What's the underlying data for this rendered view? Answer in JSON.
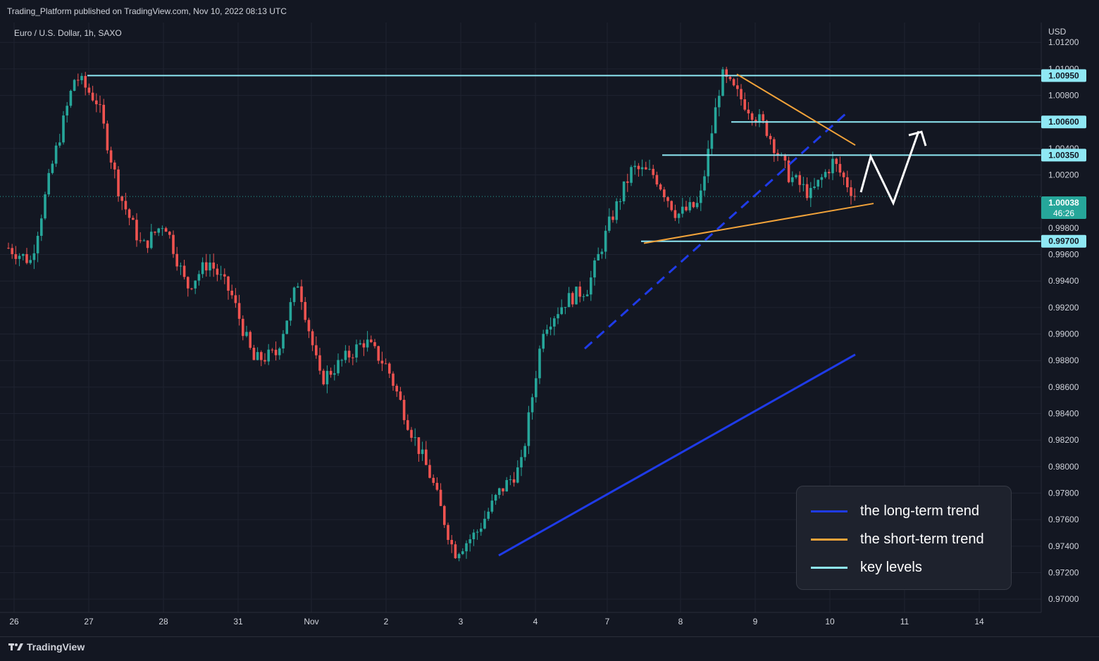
{
  "header": {
    "published": "Trading_Platform published on TradingView.com, Nov 10, 2022 08:13 UTC"
  },
  "footer": {
    "brand": "TradingView"
  },
  "legend": {
    "items": [
      {
        "label": "the long-term trend",
        "color": "#1f3be8"
      },
      {
        "label": "the short-term trend",
        "color": "#f2a33a"
      },
      {
        "label": "key levels",
        "color": "#8fe8f4"
      }
    ]
  },
  "colors": {
    "up": "#26a69a",
    "down": "#ef5350",
    "background": "#131722",
    "key_level": "#8fe8f4",
    "long_trend": "#1f3be8",
    "short_trend": "#f2a33a",
    "last_price_bg": "#26a69a"
  },
  "chart_data": {
    "type": "candlestick",
    "title": "Euro / U.S. Dollar, 1h, SAXO",
    "currency": "USD",
    "y_ticks": [
      "1.01200",
      "1.01000",
      "1.00800",
      "1.00400",
      "1.00200",
      "0.99800",
      "0.99600",
      "0.99400",
      "0.99200",
      "0.99000",
      "0.98800",
      "0.98600",
      "0.98400",
      "0.98200",
      "0.98000",
      "0.97800",
      "0.97600",
      "0.97400",
      "0.97200",
      "0.97000"
    ],
    "x_ticks": [
      "26",
      "27",
      "28",
      "31",
      "Nov",
      "2",
      "3",
      "4",
      "7",
      "8",
      "9",
      "10",
      "11",
      "14"
    ],
    "ylim": [
      0.969,
      1.0135
    ],
    "grid": true,
    "last_price": {
      "value": "1.00038",
      "countdown": "46:26"
    },
    "key_levels": [
      {
        "value": 1.0095,
        "label": "1.00950"
      },
      {
        "value": 1.006,
        "label": "1.00600"
      },
      {
        "value": 1.0035,
        "label": "1.00350"
      },
      {
        "value": 0.997,
        "label": "0.99700"
      }
    ],
    "price_path": [
      {
        "x": "26",
        "y": 0.9965
      },
      {
        "x": "26.5",
        "y": 0.9955
      },
      {
        "x": "26.8",
        "y": 1.003
      },
      {
        "x": "27",
        "y": 1.0095
      },
      {
        "x": "27.3",
        "y": 1.0075
      },
      {
        "x": "27.6",
        "y": 1.0005
      },
      {
        "x": "28",
        "y": 0.9965
      },
      {
        "x": "28.3",
        "y": 0.9985
      },
      {
        "x": "28.7",
        "y": 0.9935
      },
      {
        "x": "31",
        "y": 0.9955
      },
      {
        "x": "31.5",
        "y": 0.993
      },
      {
        "x": "31.8",
        "y": 0.988
      },
      {
        "x": "Nov",
        "y": 0.9885
      },
      {
        "x": "Nov.3",
        "y": 0.994
      },
      {
        "x": "Nov.6",
        "y": 0.9865
      },
      {
        "x": "2",
        "y": 0.988
      },
      {
        "x": "2.4",
        "y": 0.9895
      },
      {
        "x": "2.7",
        "y": 0.9875
      },
      {
        "x": "3",
        "y": 0.983
      },
      {
        "x": "3.3",
        "y": 0.979
      },
      {
        "x": "3.5",
        "y": 0.9735
      },
      {
        "x": "4",
        "y": 0.975
      },
      {
        "x": "4.4",
        "y": 0.978
      },
      {
        "x": "4.6",
        "y": 0.98
      },
      {
        "x": "4.8",
        "y": 0.9905
      },
      {
        "x": "7",
        "y": 0.9925
      },
      {
        "x": "7.3",
        "y": 0.9935
      },
      {
        "x": "7.5",
        "y": 0.9985
      },
      {
        "x": "7.8",
        "y": 1.0025
      },
      {
        "x": "8",
        "y": 1.002
      },
      {
        "x": "8.3",
        "y": 0.999
      },
      {
        "x": "8.6",
        "y": 0.9998
      },
      {
        "x": "8.7",
        "y": 1.0095
      },
      {
        "x": "9",
        "y": 1.0075
      },
      {
        "x": "9.4",
        "y": 1.0055
      },
      {
        "x": "9.7",
        "y": 1.002
      },
      {
        "x": "10",
        "y": 1.0005
      },
      {
        "x": "10.2",
        "y": 1.003
      },
      {
        "x": "10.3",
        "y": 1.0004
      }
    ]
  }
}
